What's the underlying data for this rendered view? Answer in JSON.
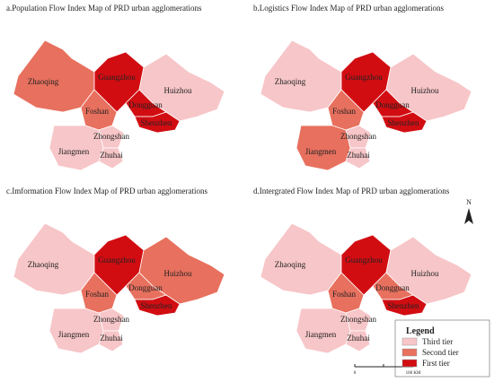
{
  "maps": [
    {
      "title": "a.Population Flow Index Map of PRD urban agglomerations",
      "regions": [
        {
          "label": "Zhaoqing",
          "tier": 1
        },
        {
          "label": "Guangzhou",
          "tier": 2
        },
        {
          "label": "Huizhou",
          "tier": 0
        },
        {
          "label": "Foshan",
          "tier": 1
        },
        {
          "label": "Dongguan",
          "tier": 2
        },
        {
          "label": "Shenzhen",
          "tier": 2
        },
        {
          "label": "Zhongshan",
          "tier": 0
        },
        {
          "label": "Zhuhai",
          "tier": 0
        },
        {
          "label": "Jiangmen",
          "tier": 0
        }
      ]
    },
    {
      "title": "b.Logistics Flow Index Map of PRD urban agglomerations",
      "regions": [
        {
          "label": "Zhaoqing",
          "tier": 0
        },
        {
          "label": "Guangzhou",
          "tier": 2
        },
        {
          "label": "Huizhou",
          "tier": 0
        },
        {
          "label": "Foshan",
          "tier": 1
        },
        {
          "label": "Dongguan",
          "tier": 2
        },
        {
          "label": "Shenzhen",
          "tier": 2
        },
        {
          "label": "Zhongshan",
          "tier": 0
        },
        {
          "label": "Zhuhai",
          "tier": 0
        },
        {
          "label": "Jiangmen",
          "tier": 1
        }
      ]
    },
    {
      "title": "c.Imformation Flow Index Map of PRD urban agglomerations",
      "regions": [
        {
          "label": "Zhaoqing",
          "tier": 0
        },
        {
          "label": "Guangzhou",
          "tier": 2
        },
        {
          "label": "Huizhou",
          "tier": 1
        },
        {
          "label": "Foshan",
          "tier": 1
        },
        {
          "label": "Dongguan",
          "tier": 1
        },
        {
          "label": "Shenzhen",
          "tier": 2
        },
        {
          "label": "Zhongshan",
          "tier": 0
        },
        {
          "label": "Zhuhai",
          "tier": 0
        },
        {
          "label": "Jiangmen",
          "tier": 0
        }
      ]
    },
    {
      "title": "d.Intergrated Flow Index Map of PRD urban agglomerations",
      "regions": [
        {
          "label": "Zhaoqing",
          "tier": 0
        },
        {
          "label": "Guangzhou",
          "tier": 2
        },
        {
          "label": "Huizhou",
          "tier": 0
        },
        {
          "label": "Foshan",
          "tier": 1
        },
        {
          "label": "Dongguan",
          "tier": 1
        },
        {
          "label": "Shenzhen",
          "tier": 2
        },
        {
          "label": "Zhongshan",
          "tier": 0
        },
        {
          "label": "Zhuhai",
          "tier": 0
        },
        {
          "label": "Jiangmen",
          "tier": 0
        }
      ]
    }
  ],
  "legend": {
    "title": "Legend",
    "items": [
      {
        "label": "Third tier",
        "color": "#f7c6c8"
      },
      {
        "label": "Second tier",
        "color": "#e8705e"
      },
      {
        "label": "First tier",
        "color": "#d10d12"
      }
    ]
  },
  "scale": {
    "start": "0",
    "end": "100 KM"
  },
  "north": "N"
}
